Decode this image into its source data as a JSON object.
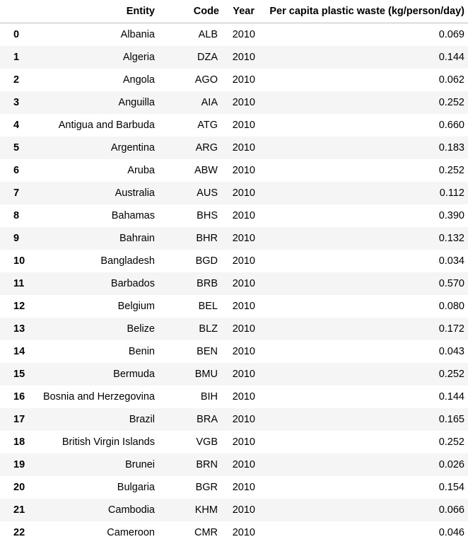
{
  "table": {
    "columns": [
      "",
      "Entity",
      "Code",
      "Year",
      "Per capita plastic waste (kg/person/day)"
    ],
    "rows": [
      {
        "index": "0",
        "entity": "Albania",
        "code": "ALB",
        "year": "2010",
        "value": "0.069"
      },
      {
        "index": "1",
        "entity": "Algeria",
        "code": "DZA",
        "year": "2010",
        "value": "0.144"
      },
      {
        "index": "2",
        "entity": "Angola",
        "code": "AGO",
        "year": "2010",
        "value": "0.062"
      },
      {
        "index": "3",
        "entity": "Anguilla",
        "code": "AIA",
        "year": "2010",
        "value": "0.252"
      },
      {
        "index": "4",
        "entity": "Antigua and Barbuda",
        "code": "ATG",
        "year": "2010",
        "value": "0.660"
      },
      {
        "index": "5",
        "entity": "Argentina",
        "code": "ARG",
        "year": "2010",
        "value": "0.183"
      },
      {
        "index": "6",
        "entity": "Aruba",
        "code": "ABW",
        "year": "2010",
        "value": "0.252"
      },
      {
        "index": "7",
        "entity": "Australia",
        "code": "AUS",
        "year": "2010",
        "value": "0.112"
      },
      {
        "index": "8",
        "entity": "Bahamas",
        "code": "BHS",
        "year": "2010",
        "value": "0.390"
      },
      {
        "index": "9",
        "entity": "Bahrain",
        "code": "BHR",
        "year": "2010",
        "value": "0.132"
      },
      {
        "index": "10",
        "entity": "Bangladesh",
        "code": "BGD",
        "year": "2010",
        "value": "0.034"
      },
      {
        "index": "11",
        "entity": "Barbados",
        "code": "BRB",
        "year": "2010",
        "value": "0.570"
      },
      {
        "index": "12",
        "entity": "Belgium",
        "code": "BEL",
        "year": "2010",
        "value": "0.080"
      },
      {
        "index": "13",
        "entity": "Belize",
        "code": "BLZ",
        "year": "2010",
        "value": "0.172"
      },
      {
        "index": "14",
        "entity": "Benin",
        "code": "BEN",
        "year": "2010",
        "value": "0.043"
      },
      {
        "index": "15",
        "entity": "Bermuda",
        "code": "BMU",
        "year": "2010",
        "value": "0.252"
      },
      {
        "index": "16",
        "entity": "Bosnia and Herzegovina",
        "code": "BIH",
        "year": "2010",
        "value": "0.144"
      },
      {
        "index": "17",
        "entity": "Brazil",
        "code": "BRA",
        "year": "2010",
        "value": "0.165"
      },
      {
        "index": "18",
        "entity": "British Virgin Islands",
        "code": "VGB",
        "year": "2010",
        "value": "0.252"
      },
      {
        "index": "19",
        "entity": "Brunei",
        "code": "BRN",
        "year": "2010",
        "value": "0.026"
      },
      {
        "index": "20",
        "entity": "Bulgaria",
        "code": "BGR",
        "year": "2010",
        "value": "0.154"
      },
      {
        "index": "21",
        "entity": "Cambodia",
        "code": "KHM",
        "year": "2010",
        "value": "0.066"
      },
      {
        "index": "22",
        "entity": "Cameroon",
        "code": "CMR",
        "year": "2010",
        "value": "0.046"
      }
    ]
  }
}
